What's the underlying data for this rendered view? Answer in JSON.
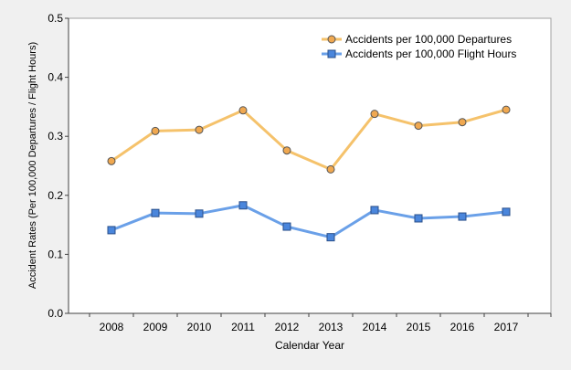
{
  "chart_data": {
    "type": "line",
    "title": "",
    "xlabel": "Calendar Year",
    "ylabel": "Accident Rates (Per 100,000 Departures / Flight Hours)",
    "categories": [
      "2008",
      "2009",
      "2010",
      "2011",
      "2012",
      "2013",
      "2014",
      "2015",
      "2016",
      "2017"
    ],
    "ylim": [
      0,
      0.5
    ],
    "yticks": [
      "0.0",
      "0.1",
      "0.2",
      "0.3",
      "0.4",
      "0.5"
    ],
    "grid": false,
    "legend_position": "top-right",
    "series": [
      {
        "name": "Accidents per 100,000 Departures",
        "values": [
          0.258,
          0.309,
          0.311,
          0.344,
          0.276,
          0.244,
          0.338,
          0.318,
          0.324,
          0.345
        ],
        "color": "#f5c26b",
        "marker": "circle",
        "marker_color": "#f0a850"
      },
      {
        "name": "Accidents per 100,000 Flight Hours",
        "values": [
          0.141,
          0.17,
          0.169,
          0.183,
          0.147,
          0.129,
          0.175,
          0.161,
          0.164,
          0.172
        ],
        "color": "#6aa0e8",
        "marker": "square",
        "marker_color": "#4a86dc"
      }
    ]
  }
}
